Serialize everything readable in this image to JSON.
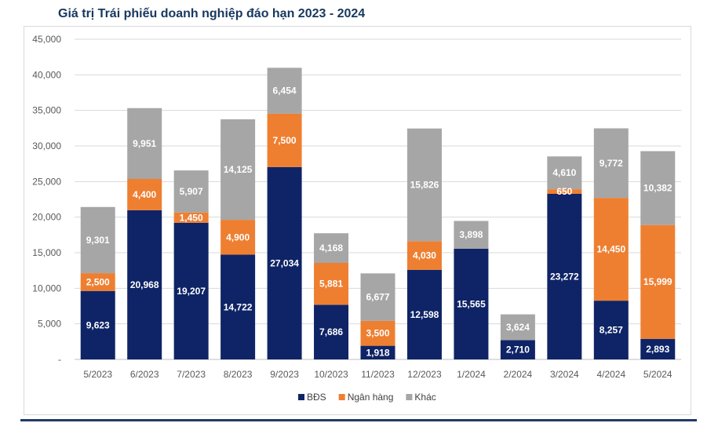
{
  "chart_data": {
    "type": "bar",
    "stacked": true,
    "title": "Giá trị Trái phiếu doanh nghiệp đáo hạn 2023 - 2024",
    "xlabel": "",
    "ylabel": "",
    "ylim": [
      0,
      45000
    ],
    "yticks": [
      0,
      5000,
      10000,
      15000,
      20000,
      25000,
      30000,
      35000,
      40000,
      45000
    ],
    "ytick_labels": [
      "-",
      "5,000",
      "10,000",
      "15,000",
      "20,000",
      "25,000",
      "30,000",
      "35,000",
      "40,000",
      "45,000"
    ],
    "grid": true,
    "legend_position": "bottom-center",
    "categories": [
      "5/2023",
      "6/2023",
      "7/2023",
      "8/2023",
      "9/2023",
      "10/2023",
      "11/2023",
      "12/2023",
      "1/2024",
      "2/2024",
      "3/2024",
      "4/2024",
      "5/2024"
    ],
    "series": [
      {
        "name": "BĐS",
        "color": "#0f2466",
        "values": [
          9623,
          20968,
          19207,
          14722,
          27034,
          7686,
          1918,
          12598,
          15565,
          2710,
          23272,
          8257,
          2893
        ],
        "labels": [
          "9,623",
          "20,968",
          "19,207",
          "14,722",
          "27,034",
          "7,686",
          "1,918",
          "12,598",
          "15,565",
          "2,710",
          "23,272",
          "8,257",
          "2,893"
        ]
      },
      {
        "name": "Ngân hàng",
        "color": "#ee7f31",
        "values": [
          2500,
          4400,
          1450,
          4900,
          7500,
          5881,
          3500,
          4030,
          0,
          0,
          650,
          14450,
          15999
        ],
        "labels": [
          "2,500",
          "4,400",
          "1,450",
          "4,900",
          "7,500",
          "5,881",
          "3,500",
          "4,030",
          "",
          "",
          "650",
          "14,450",
          "15,999"
        ]
      },
      {
        "name": "Khác",
        "color": "#a6a6a6",
        "values": [
          9301,
          9951,
          5907,
          14125,
          6454,
          4168,
          6677,
          15826,
          3898,
          3624,
          4610,
          9772,
          10382
        ],
        "labels": [
          "9,301",
          "9,951",
          "5,907",
          "14,125",
          "6,454",
          "4,168",
          "6,677",
          "15,826",
          "3,898",
          "3,624",
          "4,610",
          "9,772",
          "10,382"
        ]
      }
    ]
  }
}
